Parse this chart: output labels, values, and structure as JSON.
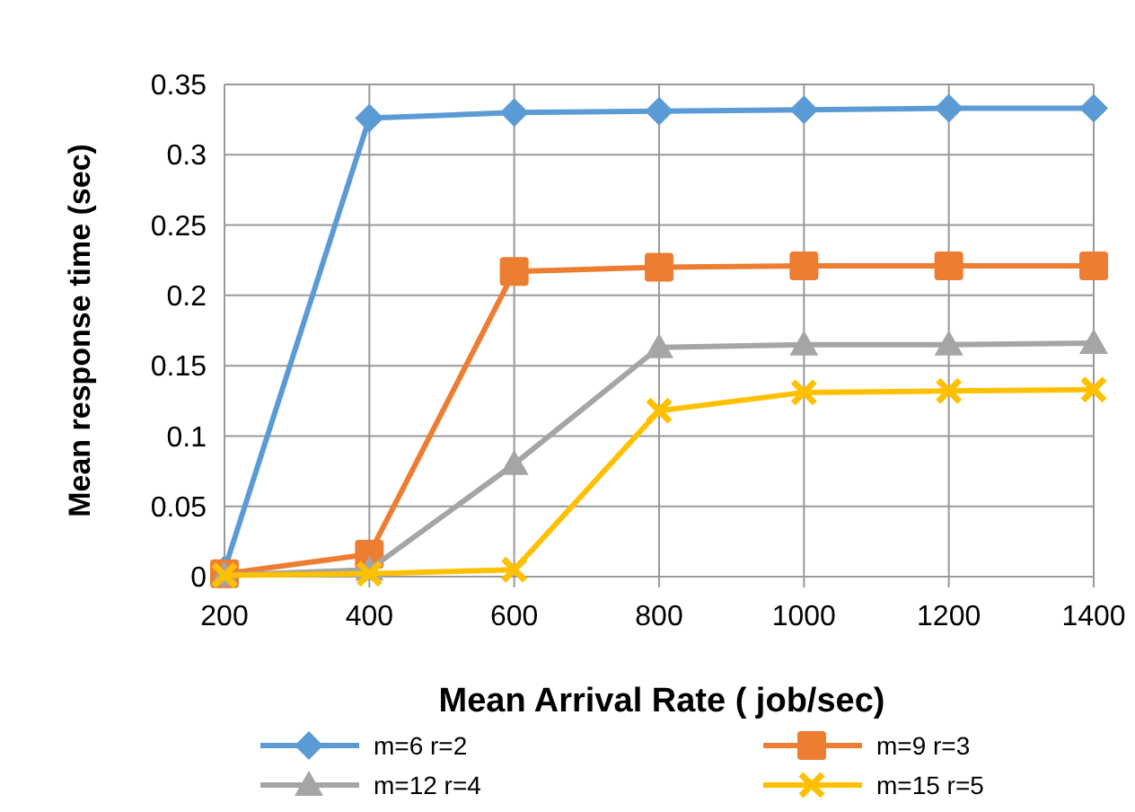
{
  "chart_data": {
    "type": "line",
    "xlabel": "Mean Arrival Rate ( job/sec)",
    "ylabel": "Mean response time (sec)",
    "categories": [
      "200",
      "400",
      "600",
      "800",
      "1000",
      "1200",
      "1400"
    ],
    "series": [
      {
        "name": "m=6  r=2",
        "color": "#5b9bd5",
        "marker": "diamond",
        "values": [
          0.005,
          0.326,
          0.33,
          0.331,
          0.332,
          0.333,
          0.333
        ]
      },
      {
        "name": "m=9  r=3",
        "color": "#ed7d31",
        "marker": "square",
        "values": [
          0.002,
          0.016,
          0.217,
          0.22,
          0.221,
          0.221,
          0.221
        ]
      },
      {
        "name": "m=12  r=4",
        "color": "#a5a5a5",
        "marker": "triangle",
        "values": [
          0.001,
          0.005,
          0.08,
          0.163,
          0.165,
          0.165,
          0.166
        ]
      },
      {
        "name": "m=15  r=5",
        "color": "#ffc000",
        "marker": "cross",
        "values": [
          0.001,
          0.002,
          0.005,
          0.118,
          0.131,
          0.132,
          0.133
        ]
      }
    ],
    "ylim": [
      0,
      0.35
    ],
    "yticks": [
      {
        "value": 0,
        "label": "0"
      },
      0.05,
      0.1,
      0.15,
      0.2,
      0.25,
      0.3,
      0.35
    ],
    "grid": true,
    "legend": "bottom"
  }
}
